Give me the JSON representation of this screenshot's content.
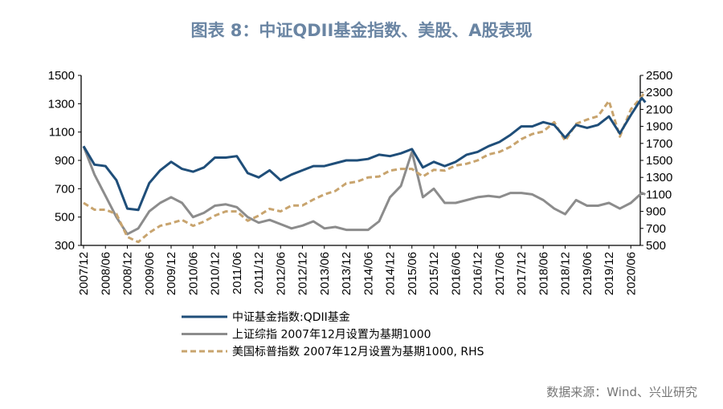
{
  "title": "图表 8：中证QDII基金指数、美股、A股表现",
  "source": "数据来源：Wind、兴业研究",
  "chart_data": {
    "type": "line",
    "title": "图表 8：中证QDII基金指数、美股、A股表现",
    "x_tick_labels": [
      "2007/12",
      "2008/06",
      "2008/12",
      "2009/06",
      "2009/12",
      "2010/06",
      "2010/12",
      "2011/06",
      "2011/12",
      "2012/06",
      "2012/12",
      "2013/06",
      "2013/12",
      "2014/06",
      "2014/12",
      "2015/06",
      "2015/12",
      "2016/06",
      "2016/12",
      "2017/06",
      "2017/12",
      "2018/06",
      "2018/12",
      "2019/06",
      "2019/12",
      "2020/06"
    ],
    "x": [
      "2007/12",
      "2008/03",
      "2008/06",
      "2008/09",
      "2008/12",
      "2009/03",
      "2009/06",
      "2009/09",
      "2009/12",
      "2010/03",
      "2010/06",
      "2010/09",
      "2010/12",
      "2011/03",
      "2011/06",
      "2011/09",
      "2011/12",
      "2012/03",
      "2012/06",
      "2012/09",
      "2012/12",
      "2013/03",
      "2013/06",
      "2013/09",
      "2013/12",
      "2014/03",
      "2014/06",
      "2014/09",
      "2014/12",
      "2015/03",
      "2015/06",
      "2015/09",
      "2015/12",
      "2016/03",
      "2016/06",
      "2016/09",
      "2016/12",
      "2017/03",
      "2017/06",
      "2017/09",
      "2017/12",
      "2018/03",
      "2018/06",
      "2018/09",
      "2018/12",
      "2019/03",
      "2019/06",
      "2019/09",
      "2019/12",
      "2020/03",
      "2020/06",
      "2020/09",
      "2020/10"
    ],
    "left_axis": {
      "range": [
        300,
        1500
      ],
      "ticks": [
        "300",
        "500",
        "700",
        "900",
        "1100",
        "1300",
        "1500"
      ]
    },
    "right_axis": {
      "range": [
        500,
        2500
      ],
      "ticks": [
        "500",
        "700",
        "900",
        "1100",
        "1300",
        "1500",
        "1700",
        "1900",
        "2100",
        "2300",
        "2500"
      ]
    },
    "grid": false,
    "legend_position": "bottom",
    "series": [
      {
        "name": "中证基金指数:QDII基金",
        "axis": "left",
        "color": "#1f4e79",
        "style": "solid",
        "values": [
          1000,
          870,
          860,
          760,
          560,
          550,
          740,
          830,
          890,
          840,
          820,
          850,
          920,
          920,
          930,
          810,
          780,
          830,
          760,
          800,
          830,
          860,
          860,
          880,
          900,
          900,
          910,
          940,
          930,
          950,
          980,
          850,
          890,
          860,
          890,
          940,
          960,
          1000,
          1030,
          1080,
          1140,
          1140,
          1170,
          1150,
          1060,
          1150,
          1130,
          1150,
          1210,
          1090,
          1220,
          1340,
          1310
        ]
      },
      {
        "name": "上证综指 2007年12月设置为基期1000",
        "axis": "left",
        "color": "#8c8c8c",
        "style": "solid",
        "values": [
          1000,
          800,
          650,
          500,
          380,
          420,
          540,
          600,
          640,
          600,
          500,
          530,
          580,
          590,
          570,
          500,
          460,
          480,
          450,
          420,
          440,
          470,
          420,
          430,
          410,
          410,
          410,
          470,
          640,
          720,
          960,
          640,
          700,
          600,
          600,
          620,
          640,
          650,
          640,
          670,
          670,
          660,
          620,
          560,
          520,
          620,
          580,
          580,
          600,
          560,
          600,
          670,
          660
        ]
      },
      {
        "name": "美国标普指数 2007年12月设置为基期1000, RHS",
        "axis": "right",
        "color": "#c8a46e",
        "style": "dashed",
        "values": [
          1000,
          920,
          920,
          870,
          600,
          540,
          650,
          730,
          760,
          800,
          730,
          780,
          850,
          900,
          900,
          790,
          850,
          930,
          900,
          970,
          970,
          1040,
          1100,
          1140,
          1230,
          1250,
          1300,
          1310,
          1380,
          1400,
          1400,
          1310,
          1390,
          1380,
          1440,
          1460,
          1500,
          1570,
          1600,
          1660,
          1750,
          1810,
          1840,
          1950,
          1730,
          1930,
          1980,
          2020,
          2200,
          1780,
          2100,
          2250,
          2320
        ]
      }
    ]
  }
}
